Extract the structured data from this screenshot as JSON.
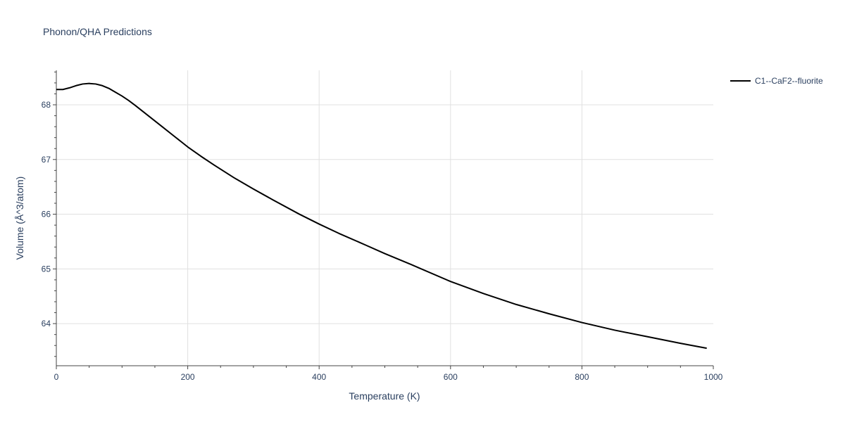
{
  "chart_data": {
    "type": "line",
    "title": "Phonon/QHA Predictions",
    "xlabel": "Temperature (K)",
    "ylabel": "Volume (Å^3/atom)",
    "xlim": [
      0,
      1000
    ],
    "ylim": [
      63.23,
      68.63
    ],
    "x_ticks": [
      0,
      200,
      400,
      600,
      800,
      1000
    ],
    "y_ticks": [
      64,
      65,
      66,
      67,
      68
    ],
    "x_tick_labels": [
      "0",
      "200",
      "400",
      "600",
      "800",
      "1000"
    ],
    "y_tick_labels": [
      "64",
      "65",
      "66",
      "67",
      "68"
    ],
    "grid": true,
    "legend_position": "top-right",
    "series": [
      {
        "name": "C1--CaF2--fluorite",
        "color": "#000000",
        "x": [
          0,
          10,
          20,
          30,
          40,
          50,
          60,
          70,
          80,
          90,
          100,
          110,
          120,
          140,
          160,
          180,
          200,
          220,
          240,
          270,
          300,
          330,
          370,
          400,
          430,
          470,
          500,
          540,
          600,
          650,
          700,
          750,
          800,
          850,
          900,
          950,
          990
        ],
        "y": [
          68.28,
          68.28,
          68.31,
          68.35,
          68.38,
          68.39,
          68.38,
          68.35,
          68.3,
          68.23,
          68.16,
          68.08,
          67.99,
          67.8,
          67.61,
          67.42,
          67.23,
          67.06,
          66.9,
          66.67,
          66.46,
          66.26,
          66.0,
          65.82,
          65.65,
          65.44,
          65.28,
          65.08,
          64.77,
          64.55,
          64.35,
          64.18,
          64.02,
          63.88,
          63.76,
          63.64,
          63.55
        ]
      }
    ]
  }
}
